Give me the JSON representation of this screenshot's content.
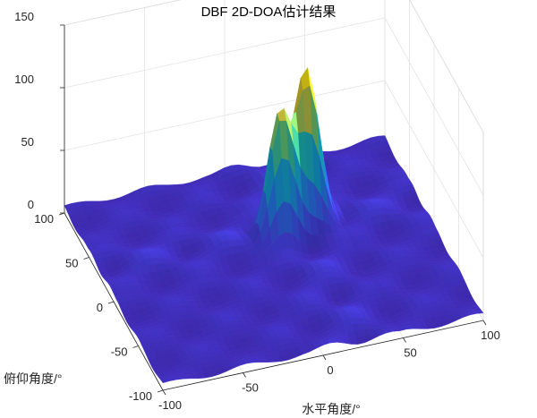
{
  "chart_data": {
    "type": "surface",
    "title": "DBF 2D-DOA估计结果",
    "xlabel": "水平角度/°",
    "ylabel": "俯仰角度/°",
    "zlabel": "",
    "xlim": [
      -100,
      100
    ],
    "ylim": [
      -100,
      100
    ],
    "zlim": [
      0,
      150
    ],
    "x_ticks": [
      "-100",
      "-50",
      "0",
      "50",
      "100"
    ],
    "y_ticks": [
      "-100",
      "-50",
      "0",
      "50",
      "100"
    ],
    "z_ticks": [
      "0",
      "50",
      "100",
      "150"
    ],
    "grid": true,
    "colormap": "parula",
    "peaks": [
      {
        "x": 10,
        "y": 20,
        "z": 100
      },
      {
        "x": 30,
        "y": 30,
        "z": 115
      }
    ],
    "sidelobe_level": 10,
    "colors": {
      "low": "#3e26a8",
      "mid": "#21b6c4",
      "high": "#f9fb0e"
    }
  }
}
